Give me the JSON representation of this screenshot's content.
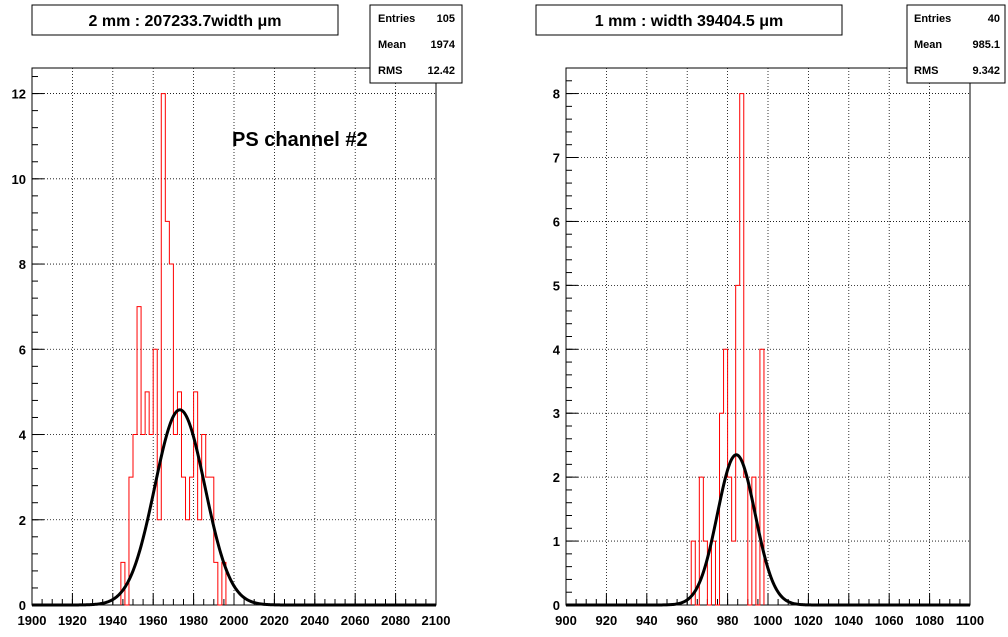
{
  "chart_data": [
    {
      "type": "histogram",
      "title": "2 mm : 207233.7width  μm",
      "stats": {
        "entries_label": "Entries",
        "entries": "105",
        "mean_label": "Mean",
        "mean": "1974",
        "rms_label": "RMS",
        "rms": "12.42"
      },
      "annotation": "PS channel #2",
      "xlim": [
        1900,
        2100
      ],
      "ylim": [
        0,
        12.6
      ],
      "x_ticks": [
        "1900",
        "1920",
        "1940",
        "1960",
        "1980",
        "2000",
        "2020",
        "2040",
        "2060",
        "2080",
        "2100"
      ],
      "y_ticks": [
        "0",
        "2",
        "4",
        "6",
        "8",
        "10",
        "12"
      ],
      "bin_width": 2,
      "bins": [
        {
          "x": 1944,
          "y": 1
        },
        {
          "x": 1946,
          "y": 0
        },
        {
          "x": 1948,
          "y": 3
        },
        {
          "x": 1950,
          "y": 4
        },
        {
          "x": 1952,
          "y": 7
        },
        {
          "x": 1954,
          "y": 4
        },
        {
          "x": 1956,
          "y": 5
        },
        {
          "x": 1958,
          "y": 4
        },
        {
          "x": 1960,
          "y": 6
        },
        {
          "x": 1962,
          "y": 2
        },
        {
          "x": 1964,
          "y": 12
        },
        {
          "x": 1966,
          "y": 9
        },
        {
          "x": 1968,
          "y": 8
        },
        {
          "x": 1970,
          "y": 4
        },
        {
          "x": 1972,
          "y": 5
        },
        {
          "x": 1974,
          "y": 3
        },
        {
          "x": 1976,
          "y": 2
        },
        {
          "x": 1978,
          "y": 3
        },
        {
          "x": 1980,
          "y": 5
        },
        {
          "x": 1982,
          "y": 2
        },
        {
          "x": 1984,
          "y": 4
        },
        {
          "x": 1986,
          "y": 3
        },
        {
          "x": 1988,
          "y": 3
        },
        {
          "x": 1990,
          "y": 1
        },
        {
          "x": 1992,
          "y": 0
        },
        {
          "x": 1994,
          "y": 1
        }
      ],
      "fit": {
        "type": "gaussian",
        "mean": 1973.2,
        "sigma": 12.42,
        "amplitude": 4.58
      },
      "colors": {
        "histogram": "#ff0000",
        "fit": "#000000",
        "grid": "#000000"
      }
    },
    {
      "type": "histogram",
      "title": "1 mm : width 39404.5  μm",
      "stats": {
        "entries_label": "Entries",
        "entries": "40",
        "mean_label": "Mean",
        "mean": "985.1",
        "rms_label": "RMS",
        "rms": "9.342"
      },
      "annotation": "",
      "xlim": [
        900,
        1100
      ],
      "ylim": [
        0,
        8.4
      ],
      "x_ticks": [
        "900",
        "920",
        "940",
        "960",
        "980",
        "1000",
        "1020",
        "1040",
        "1060",
        "1080",
        "1100"
      ],
      "y_ticks": [
        "0",
        "1",
        "2",
        "3",
        "4",
        "5",
        "6",
        "7",
        "8"
      ],
      "bin_width": 2,
      "bins": [
        {
          "x": 962,
          "y": 1
        },
        {
          "x": 964,
          "y": 0
        },
        {
          "x": 966,
          "y": 2
        },
        {
          "x": 968,
          "y": 1
        },
        {
          "x": 970,
          "y": 0
        },
        {
          "x": 972,
          "y": 1
        },
        {
          "x": 974,
          "y": 0
        },
        {
          "x": 976,
          "y": 3
        },
        {
          "x": 978,
          "y": 4
        },
        {
          "x": 980,
          "y": 2
        },
        {
          "x": 982,
          "y": 1
        },
        {
          "x": 984,
          "y": 5
        },
        {
          "x": 986,
          "y": 8
        },
        {
          "x": 988,
          "y": 2
        },
        {
          "x": 990,
          "y": 0
        },
        {
          "x": 992,
          "y": 2
        },
        {
          "x": 994,
          "y": 0
        },
        {
          "x": 996,
          "y": 4
        }
      ],
      "fit": {
        "type": "gaussian",
        "mean": 984.3,
        "sigma": 9.342,
        "amplitude": 2.35
      },
      "colors": {
        "histogram": "#ff0000",
        "fit": "#000000",
        "grid": "#000000"
      }
    }
  ]
}
